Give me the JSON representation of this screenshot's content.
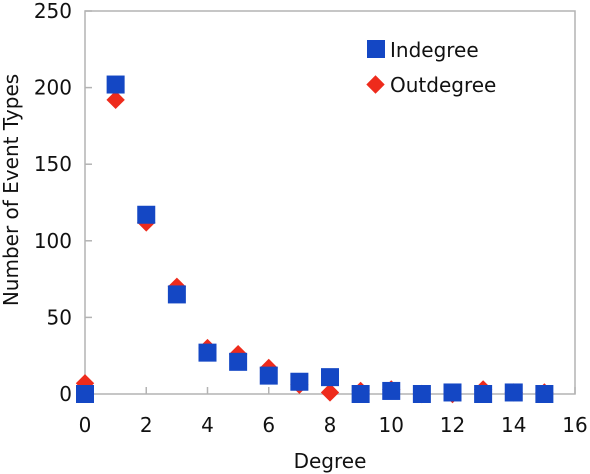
{
  "chart_data": {
    "type": "scatter",
    "xlabel": "Degree",
    "ylabel": "Number of Event Types",
    "xlim": [
      0,
      16
    ],
    "ylim": [
      0,
      250
    ],
    "xticks": [
      0,
      2,
      4,
      6,
      8,
      10,
      12,
      14,
      16
    ],
    "yticks": [
      0,
      50,
      100,
      150,
      200,
      250
    ],
    "grid": false,
    "legend_position": "top-right",
    "series": [
      {
        "name": "Indegree",
        "marker": "square",
        "color": "#1447c4",
        "x": [
          0,
          1,
          2,
          3,
          4,
          5,
          6,
          7,
          8,
          9,
          10,
          11,
          12,
          13,
          14,
          15
        ],
        "y": [
          0,
          202,
          117,
          65,
          27,
          21,
          12,
          8,
          11,
          0,
          2,
          0,
          1,
          0,
          1,
          0
        ]
      },
      {
        "name": "Outdegree",
        "marker": "diamond",
        "color": "#ee2b1c",
        "x": [
          0,
          1,
          2,
          3,
          4,
          5,
          6,
          7,
          8,
          9,
          10,
          11,
          12,
          13,
          14,
          15
        ],
        "y": [
          7,
          192,
          112,
          70,
          30,
          26,
          17,
          6,
          1,
          2,
          3,
          0,
          0,
          3,
          1,
          1
        ]
      }
    ]
  }
}
